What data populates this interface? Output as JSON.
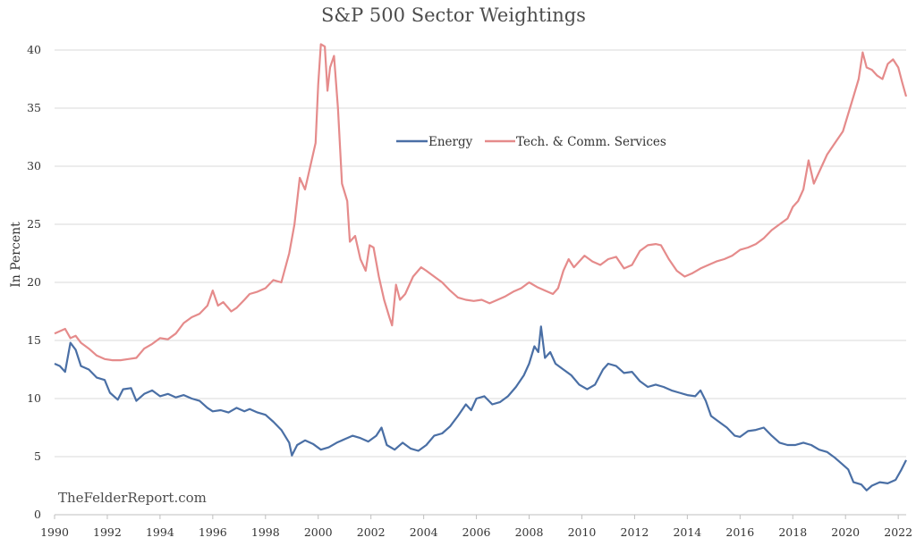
{
  "watermark": "TheFelderReport.com",
  "chart_data": {
    "type": "line",
    "title": "S&P 500 Sector Weightings",
    "xlabel": "",
    "ylabel": "In Percent",
    "xlim": [
      1990,
      2022.3
    ],
    "ylim": [
      0,
      40
    ],
    "xticks": [
      "1990",
      "1992",
      "1994",
      "1996",
      "1998",
      "2000",
      "2002",
      "2004",
      "2006",
      "2008",
      "2010",
      "2012",
      "2014",
      "2016",
      "2018",
      "2020",
      "2022"
    ],
    "yticks": [
      "0",
      "5",
      "10",
      "15",
      "20",
      "25",
      "30",
      "35",
      "40"
    ],
    "grid": true,
    "legend_position": "top-center",
    "series": [
      {
        "name": "Energy",
        "color": "#4a6fa5",
        "points": [
          [
            1990.0,
            13.0
          ],
          [
            1990.2,
            12.8
          ],
          [
            1990.4,
            12.3
          ],
          [
            1990.6,
            14.8
          ],
          [
            1990.8,
            14.2
          ],
          [
            1991.0,
            12.8
          ],
          [
            1991.3,
            12.5
          ],
          [
            1991.6,
            11.8
          ],
          [
            1991.9,
            11.6
          ],
          [
            1992.1,
            10.5
          ],
          [
            1992.4,
            9.9
          ],
          [
            1992.6,
            10.8
          ],
          [
            1992.9,
            10.9
          ],
          [
            1993.1,
            9.8
          ],
          [
            1993.4,
            10.4
          ],
          [
            1993.7,
            10.7
          ],
          [
            1994.0,
            10.2
          ],
          [
            1994.3,
            10.4
          ],
          [
            1994.6,
            10.1
          ],
          [
            1994.9,
            10.3
          ],
          [
            1995.2,
            10.0
          ],
          [
            1995.5,
            9.8
          ],
          [
            1995.8,
            9.2
          ],
          [
            1996.0,
            8.9
          ],
          [
            1996.3,
            9.0
          ],
          [
            1996.6,
            8.8
          ],
          [
            1996.9,
            9.2
          ],
          [
            1997.2,
            8.9
          ],
          [
            1997.4,
            9.1
          ],
          [
            1997.7,
            8.8
          ],
          [
            1998.0,
            8.6
          ],
          [
            1998.3,
            8.0
          ],
          [
            1998.6,
            7.3
          ],
          [
            1998.9,
            6.2
          ],
          [
            1999.0,
            5.1
          ],
          [
            1999.2,
            6.0
          ],
          [
            1999.5,
            6.4
          ],
          [
            1999.8,
            6.1
          ],
          [
            2000.1,
            5.6
          ],
          [
            2000.4,
            5.8
          ],
          [
            2000.7,
            6.2
          ],
          [
            2001.0,
            6.5
          ],
          [
            2001.3,
            6.8
          ],
          [
            2001.6,
            6.6
          ],
          [
            2001.9,
            6.3
          ],
          [
            2002.2,
            6.8
          ],
          [
            2002.4,
            7.5
          ],
          [
            2002.6,
            6.0
          ],
          [
            2002.9,
            5.6
          ],
          [
            2003.2,
            6.2
          ],
          [
            2003.5,
            5.7
          ],
          [
            2003.8,
            5.5
          ],
          [
            2004.1,
            6.0
          ],
          [
            2004.4,
            6.8
          ],
          [
            2004.7,
            7.0
          ],
          [
            2005.0,
            7.6
          ],
          [
            2005.3,
            8.5
          ],
          [
            2005.6,
            9.5
          ],
          [
            2005.8,
            9.0
          ],
          [
            2006.0,
            10.0
          ],
          [
            2006.3,
            10.2
          ],
          [
            2006.6,
            9.5
          ],
          [
            2006.9,
            9.7
          ],
          [
            2007.2,
            10.2
          ],
          [
            2007.5,
            11.0
          ],
          [
            2007.8,
            12.0
          ],
          [
            2008.0,
            13.0
          ],
          [
            2008.2,
            14.5
          ],
          [
            2008.35,
            14.0
          ],
          [
            2008.45,
            16.2
          ],
          [
            2008.6,
            13.5
          ],
          [
            2008.8,
            14.0
          ],
          [
            2009.0,
            13.0
          ],
          [
            2009.3,
            12.5
          ],
          [
            2009.6,
            12.0
          ],
          [
            2009.9,
            11.2
          ],
          [
            2010.2,
            10.8
          ],
          [
            2010.5,
            11.2
          ],
          [
            2010.8,
            12.5
          ],
          [
            2011.0,
            13.0
          ],
          [
            2011.3,
            12.8
          ],
          [
            2011.6,
            12.2
          ],
          [
            2011.9,
            12.3
          ],
          [
            2012.2,
            11.5
          ],
          [
            2012.5,
            11.0
          ],
          [
            2012.8,
            11.2
          ],
          [
            2013.1,
            11.0
          ],
          [
            2013.4,
            10.7
          ],
          [
            2013.7,
            10.5
          ],
          [
            2014.0,
            10.3
          ],
          [
            2014.3,
            10.2
          ],
          [
            2014.5,
            10.7
          ],
          [
            2014.7,
            9.8
          ],
          [
            2014.9,
            8.5
          ],
          [
            2015.2,
            8.0
          ],
          [
            2015.5,
            7.5
          ],
          [
            2015.8,
            6.8
          ],
          [
            2016.0,
            6.7
          ],
          [
            2016.3,
            7.2
          ],
          [
            2016.6,
            7.3
          ],
          [
            2016.9,
            7.5
          ],
          [
            2017.2,
            6.8
          ],
          [
            2017.5,
            6.2
          ],
          [
            2017.8,
            6.0
          ],
          [
            2018.1,
            6.0
          ],
          [
            2018.4,
            6.2
          ],
          [
            2018.7,
            6.0
          ],
          [
            2019.0,
            5.6
          ],
          [
            2019.3,
            5.4
          ],
          [
            2019.6,
            4.9
          ],
          [
            2019.9,
            4.3
          ],
          [
            2020.1,
            3.9
          ],
          [
            2020.3,
            2.8
          ],
          [
            2020.6,
            2.6
          ],
          [
            2020.8,
            2.1
          ],
          [
            2021.0,
            2.5
          ],
          [
            2021.3,
            2.8
          ],
          [
            2021.6,
            2.7
          ],
          [
            2021.9,
            3.0
          ],
          [
            2022.1,
            3.8
          ],
          [
            2022.3,
            4.7
          ]
        ]
      },
      {
        "name": "Tech. & Comm. Services",
        "color": "#e58b8b",
        "points": [
          [
            1990.0,
            15.6
          ],
          [
            1990.2,
            15.8
          ],
          [
            1990.4,
            16.0
          ],
          [
            1990.6,
            15.2
          ],
          [
            1990.8,
            15.4
          ],
          [
            1991.0,
            14.8
          ],
          [
            1991.3,
            14.3
          ],
          [
            1991.6,
            13.7
          ],
          [
            1991.9,
            13.4
          ],
          [
            1992.2,
            13.3
          ],
          [
            1992.5,
            13.3
          ],
          [
            1992.8,
            13.4
          ],
          [
            1993.1,
            13.5
          ],
          [
            1993.4,
            14.3
          ],
          [
            1993.7,
            14.7
          ],
          [
            1994.0,
            15.2
          ],
          [
            1994.3,
            15.1
          ],
          [
            1994.6,
            15.6
          ],
          [
            1994.9,
            16.5
          ],
          [
            1995.2,
            17.0
          ],
          [
            1995.5,
            17.3
          ],
          [
            1995.8,
            18.0
          ],
          [
            1996.0,
            19.3
          ],
          [
            1996.2,
            18.0
          ],
          [
            1996.4,
            18.3
          ],
          [
            1996.7,
            17.5
          ],
          [
            1996.9,
            17.8
          ],
          [
            1997.2,
            18.5
          ],
          [
            1997.4,
            19.0
          ],
          [
            1997.7,
            19.2
          ],
          [
            1998.0,
            19.5
          ],
          [
            1998.3,
            20.2
          ],
          [
            1998.6,
            20.0
          ],
          [
            1998.9,
            22.5
          ],
          [
            1999.1,
            25.0
          ],
          [
            1999.3,
            29.0
          ],
          [
            1999.5,
            28.0
          ],
          [
            1999.7,
            30.0
          ],
          [
            1999.9,
            32.0
          ],
          [
            2000.0,
            37.0
          ],
          [
            2000.1,
            40.5
          ],
          [
            2000.25,
            40.3
          ],
          [
            2000.35,
            36.5
          ],
          [
            2000.45,
            38.5
          ],
          [
            2000.6,
            39.5
          ],
          [
            2000.75,
            35.0
          ],
          [
            2000.9,
            28.5
          ],
          [
            2001.1,
            27.0
          ],
          [
            2001.2,
            23.5
          ],
          [
            2001.4,
            24.0
          ],
          [
            2001.6,
            22.0
          ],
          [
            2001.8,
            21.0
          ],
          [
            2001.95,
            23.2
          ],
          [
            2002.1,
            23.0
          ],
          [
            2002.3,
            20.5
          ],
          [
            2002.5,
            18.5
          ],
          [
            2002.7,
            17.0
          ],
          [
            2002.8,
            16.3
          ],
          [
            2002.95,
            19.8
          ],
          [
            2003.1,
            18.5
          ],
          [
            2003.3,
            19.0
          ],
          [
            2003.6,
            20.5
          ],
          [
            2003.9,
            21.3
          ],
          [
            2004.1,
            21.0
          ],
          [
            2004.4,
            20.5
          ],
          [
            2004.7,
            20.0
          ],
          [
            2005.0,
            19.3
          ],
          [
            2005.3,
            18.7
          ],
          [
            2005.6,
            18.5
          ],
          [
            2005.9,
            18.4
          ],
          [
            2006.2,
            18.5
          ],
          [
            2006.5,
            18.2
          ],
          [
            2006.8,
            18.5
          ],
          [
            2007.1,
            18.8
          ],
          [
            2007.4,
            19.2
          ],
          [
            2007.7,
            19.5
          ],
          [
            2008.0,
            20.0
          ],
          [
            2008.3,
            19.6
          ],
          [
            2008.6,
            19.3
          ],
          [
            2008.9,
            19.0
          ],
          [
            2009.1,
            19.5
          ],
          [
            2009.3,
            21.0
          ],
          [
            2009.5,
            22.0
          ],
          [
            2009.7,
            21.3
          ],
          [
            2009.9,
            21.8
          ],
          [
            2010.1,
            22.3
          ],
          [
            2010.4,
            21.8
          ],
          [
            2010.7,
            21.5
          ],
          [
            2011.0,
            22.0
          ],
          [
            2011.3,
            22.2
          ],
          [
            2011.6,
            21.2
          ],
          [
            2011.9,
            21.5
          ],
          [
            2012.2,
            22.7
          ],
          [
            2012.5,
            23.2
          ],
          [
            2012.8,
            23.3
          ],
          [
            2013.0,
            23.2
          ],
          [
            2013.3,
            22.0
          ],
          [
            2013.6,
            21.0
          ],
          [
            2013.9,
            20.5
          ],
          [
            2014.2,
            20.8
          ],
          [
            2014.5,
            21.2
          ],
          [
            2014.8,
            21.5
          ],
          [
            2015.1,
            21.8
          ],
          [
            2015.4,
            22.0
          ],
          [
            2015.7,
            22.3
          ],
          [
            2016.0,
            22.8
          ],
          [
            2016.3,
            23.0
          ],
          [
            2016.6,
            23.3
          ],
          [
            2016.9,
            23.8
          ],
          [
            2017.2,
            24.5
          ],
          [
            2017.5,
            25.0
          ],
          [
            2017.8,
            25.5
          ],
          [
            2018.0,
            26.5
          ],
          [
            2018.2,
            27.0
          ],
          [
            2018.4,
            28.0
          ],
          [
            2018.6,
            30.5
          ],
          [
            2018.8,
            28.5
          ],
          [
            2019.0,
            29.5
          ],
          [
            2019.3,
            31.0
          ],
          [
            2019.6,
            32.0
          ],
          [
            2019.9,
            33.0
          ],
          [
            2020.1,
            34.5
          ],
          [
            2020.3,
            36.0
          ],
          [
            2020.5,
            37.5
          ],
          [
            2020.65,
            39.8
          ],
          [
            2020.8,
            38.5
          ],
          [
            2021.0,
            38.3
          ],
          [
            2021.2,
            37.8
          ],
          [
            2021.4,
            37.5
          ],
          [
            2021.6,
            38.8
          ],
          [
            2021.8,
            39.2
          ],
          [
            2022.0,
            38.5
          ],
          [
            2022.15,
            37.2
          ],
          [
            2022.3,
            36.0
          ]
        ]
      }
    ]
  }
}
